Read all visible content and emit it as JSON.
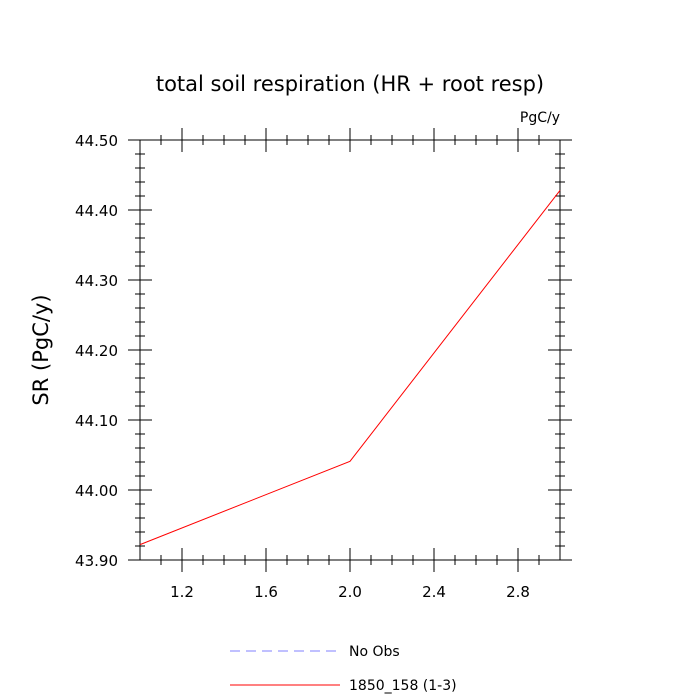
{
  "chart_data": {
    "type": "line",
    "title": "total soil respiration (HR + root resp)",
    "units_label": "PgC/y",
    "ylabel": "SR  (PgC/y)",
    "xlabel": "",
    "xlim": [
      1.0,
      3.0
    ],
    "ylim": [
      43.9,
      44.5
    ],
    "x_ticks": [
      1.2,
      1.6,
      2.0,
      2.4,
      2.8
    ],
    "x_tick_labels": [
      "1.2",
      "1.6",
      "2.0",
      "2.4",
      "2.8"
    ],
    "y_ticks": [
      43.9,
      44.0,
      44.1,
      44.2,
      44.3,
      44.4,
      44.5
    ],
    "y_tick_labels": [
      "43.90",
      "44.00",
      "44.10",
      "44.20",
      "44.30",
      "44.40",
      "44.50"
    ],
    "grid": false,
    "legend_position": "bottom",
    "series": [
      {
        "name": "No Obs",
        "color": "#8080ff",
        "dash": "dashed",
        "x": [],
        "y": []
      },
      {
        "name": "1850_158 (1-3)",
        "color": "#ff0000",
        "dash": "solid",
        "x": [
          1.0,
          2.0,
          3.0
        ],
        "y": [
          43.922,
          44.041,
          44.428
        ]
      }
    ]
  }
}
